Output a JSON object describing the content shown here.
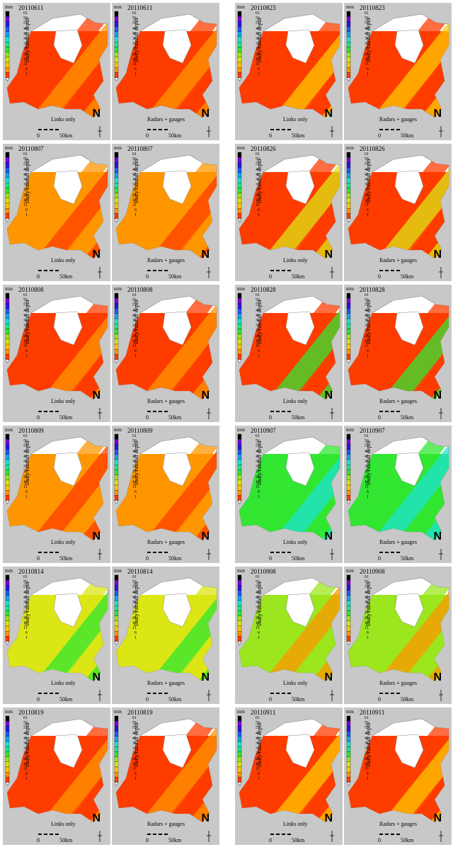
{
  "legend": {
    "unit": "mm",
    "axis_label": "Daily rainfall depth",
    "ticks": [
      "61",
      "56",
      "51",
      "46",
      "41",
      "36",
      "31",
      "26",
      "21",
      "16",
      "11",
      "6",
      "1"
    ],
    "colors": [
      "#000000",
      "#7b00d4",
      "#2a14e0",
      "#1e5af0",
      "#19a0f0",
      "#1ee1d2",
      "#1ee68c",
      "#32e632",
      "#9be61e",
      "#dce614",
      "#ffc800",
      "#ff9600",
      "#ff3c00"
    ]
  },
  "map_labels": {
    "north": "N",
    "scale_zero": "0",
    "scale_max": "50km"
  },
  "panels": [
    {
      "date": "20110611",
      "method": "Links only"
    },
    {
      "date": "20110611",
      "method": "Radars + gauges"
    },
    {
      "date": "20110823",
      "method": "Links only"
    },
    {
      "date": "20110823",
      "method": "Radars + gauges"
    },
    {
      "date": "20110807",
      "method": "Links only"
    },
    {
      "date": "20110807",
      "method": "Radars + gauges"
    },
    {
      "date": "20110826",
      "method": "Links only"
    },
    {
      "date": "20110826",
      "method": "Radars + gauges"
    },
    {
      "date": "20110808",
      "method": "Links only"
    },
    {
      "date": "20110808",
      "method": "Radars + gauges"
    },
    {
      "date": "20110828",
      "method": "Links only"
    },
    {
      "date": "20110828",
      "method": "Radars + gauges"
    },
    {
      "date": "20110809",
      "method": "Links only"
    },
    {
      "date": "20110809",
      "method": "Radars + gauges"
    },
    {
      "date": "20110907",
      "method": "Links only"
    },
    {
      "date": "20110907",
      "method": "Radars + gauges"
    },
    {
      "date": "20110814",
      "method": "Links only"
    },
    {
      "date": "20110814",
      "method": "Radars + gauges"
    },
    {
      "date": "20110908",
      "method": "Links only"
    },
    {
      "date": "20110908",
      "method": "Radars + gauges"
    },
    {
      "date": "20110819",
      "method": "Links only"
    },
    {
      "date": "20110819",
      "method": "Radars + gauges"
    },
    {
      "date": "20110911",
      "method": "Links only"
    },
    {
      "date": "20110911",
      "method": "Radars + gauges"
    }
  ],
  "fill_colors": {
    "20110611": [
      "#ff3c00",
      "#ff9600"
    ],
    "20110823": [
      "#ff3c00",
      "#ffc800"
    ],
    "20110807": [
      "#ff9600",
      "#ff3c00"
    ],
    "20110826": [
      "#ff3c00",
      "#dce614"
    ],
    "20110808": [
      "#ff3c00",
      "#ff9600"
    ],
    "20110828": [
      "#ff3c00",
      "#32e632"
    ],
    "20110809": [
      "#ff9600",
      "#ff3c00"
    ],
    "20110907": [
      "#32e632",
      "#1ee1d2"
    ],
    "20110814": [
      "#dce614",
      "#32e632"
    ],
    "20110908": [
      "#9be61e",
      "#ff9600"
    ],
    "20110819": [
      "#ff3c00",
      "#ff9600"
    ],
    "20110911": [
      "#ff3c00",
      "#ffc800"
    ]
  }
}
